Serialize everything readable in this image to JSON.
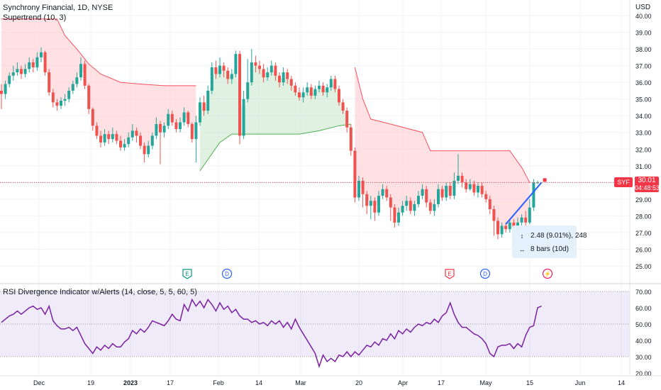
{
  "header": {
    "title": "Synchrony Financial, 1D, NYSE",
    "indicator": "Supertrend (10, 3)",
    "currency": "USD"
  },
  "rsi": {
    "label": "RSI Divergence Indicator w/Alerts (14, close, 5, 5, 60, 5)",
    "y_ticks": [
      "70.00",
      "60.00",
      "50.00",
      "40.00",
      "30.00",
      "20.00"
    ],
    "values": [
      51,
      53,
      55,
      56,
      58,
      56,
      58,
      60,
      61,
      59,
      60,
      56,
      61,
      52,
      49,
      47,
      47,
      48,
      46,
      48,
      43,
      38,
      35,
      32,
      36,
      34,
      37,
      35,
      38,
      36,
      36,
      39,
      41,
      46,
      44,
      47,
      45,
      48,
      52,
      51,
      50,
      49,
      52,
      56,
      53,
      52,
      62,
      58,
      65,
      61,
      64,
      60,
      65,
      62,
      58,
      63,
      59,
      61,
      57,
      59,
      55,
      53,
      53,
      51,
      52,
      50,
      51,
      49,
      52,
      50,
      52,
      48,
      51,
      47,
      53,
      48,
      44,
      40,
      36,
      32,
      24,
      31,
      27,
      29,
      27,
      31,
      30,
      33,
      30,
      33,
      31,
      34,
      37,
      36,
      39,
      37,
      41,
      40,
      44,
      41,
      46,
      44,
      47,
      45,
      48,
      50,
      49,
      51,
      50,
      53,
      51,
      55,
      57,
      63,
      56,
      51,
      48,
      48,
      46,
      44,
      43,
      41,
      38,
      32,
      30,
      36,
      37,
      37,
      38,
      35,
      38,
      36,
      43,
      48,
      49,
      60,
      61
    ]
  },
  "price": {
    "axis_ticks": [
      "40.00",
      "39.00",
      "38.00",
      "37.00",
      "36.00",
      "35.00",
      "34.00",
      "33.00",
      "32.00",
      "31.00",
      "30.00",
      "29.00",
      "28.00",
      "27.00",
      "26.00",
      "25.00"
    ],
    "last_symbol": "SYF",
    "last_price": "30.01",
    "countdown": "04:48:53"
  },
  "x_axis": {
    "labels": [
      "Dec",
      "19",
      "2023",
      "17",
      "Feb",
      "14",
      "Mar",
      "20",
      "Apr",
      "17",
      "May",
      "15",
      "Jun",
      "14"
    ]
  },
  "events": [
    {
      "label": "E",
      "kind": "earnings-green"
    },
    {
      "label": "D",
      "kind": "dividend"
    },
    {
      "label": "E",
      "kind": "earnings-red"
    },
    {
      "label": "D",
      "kind": "dividend"
    },
    {
      "label": "⚡",
      "kind": "flash"
    }
  ],
  "measure": {
    "range_text": "2.48 (9.01%), 248",
    "bars_text": "8 bars (10d)"
  },
  "chart_data": {
    "type": "candlestick",
    "title": "Synchrony Financial, 1D, NYSE",
    "ylim": [
      24.5,
      40.5
    ],
    "x_labels": [
      "Dec",
      "19",
      "2023",
      "17",
      "Feb",
      "14",
      "Mar",
      "20",
      "Apr",
      "17",
      "May",
      "15",
      "Jun",
      "14"
    ],
    "candles": [
      [
        35.5,
        35.3,
        35.9,
        34.4
      ],
      [
        35.3,
        35.9,
        36.1,
        35.0
      ],
      [
        35.9,
        36.4,
        36.6,
        35.7
      ],
      [
        36.4,
        36.6,
        37.0,
        36.1
      ],
      [
        36.6,
        36.8,
        37.2,
        36.4
      ],
      [
        36.8,
        36.5,
        37.0,
        36.2
      ],
      [
        36.5,
        36.8,
        37.1,
        36.3
      ],
      [
        36.8,
        37.2,
        37.5,
        36.6
      ],
      [
        37.2,
        36.9,
        37.4,
        36.6
      ],
      [
        36.9,
        37.5,
        37.8,
        36.7
      ],
      [
        37.5,
        37.8,
        38.1,
        37.2
      ],
      [
        37.8,
        36.6,
        37.9,
        36.4
      ],
      [
        36.6,
        35.4,
        36.8,
        35.2
      ],
      [
        35.4,
        34.8,
        35.6,
        34.5
      ],
      [
        34.8,
        34.6,
        35.0,
        34.3
      ],
      [
        34.6,
        34.9,
        35.1,
        34.4
      ],
      [
        34.9,
        35.0,
        35.3,
        34.6
      ],
      [
        35.0,
        35.5,
        35.7,
        34.8
      ],
      [
        35.5,
        35.9,
        36.1,
        35.3
      ],
      [
        35.9,
        36.3,
        36.6,
        35.7
      ],
      [
        36.3,
        37.1,
        37.5,
        36.1
      ],
      [
        37.1,
        35.8,
        37.3,
        35.6
      ],
      [
        35.8,
        34.4,
        35.9,
        34.1
      ],
      [
        34.4,
        33.4,
        34.5,
        33.1
      ],
      [
        33.4,
        32.8,
        33.6,
        32.6
      ],
      [
        32.8,
        32.4,
        33.1,
        32.1
      ],
      [
        32.4,
        32.9,
        33.2,
        32.2
      ],
      [
        32.9,
        32.6,
        33.1,
        32.3
      ],
      [
        32.6,
        32.9,
        33.3,
        32.4
      ],
      [
        32.9,
        32.5,
        33.1,
        32.3
      ],
      [
        32.5,
        32.1,
        32.8,
        31.9
      ],
      [
        32.1,
        32.3,
        32.6,
        31.9
      ],
      [
        32.3,
        32.7,
        33.0,
        32.1
      ],
      [
        32.7,
        33.1,
        33.5,
        32.5
      ],
      [
        33.1,
        32.8,
        33.3,
        32.4
      ],
      [
        32.8,
        32.2,
        33.0,
        32.0
      ],
      [
        32.2,
        31.7,
        32.4,
        31.2
      ],
      [
        31.7,
        32.2,
        32.5,
        31.5
      ],
      [
        32.2,
        32.8,
        33.0,
        32.0
      ],
      [
        32.8,
        33.5,
        33.9,
        32.6
      ],
      [
        33.5,
        33.0,
        33.7,
        31.1
      ],
      [
        33.0,
        33.4,
        33.6,
        32.7
      ],
      [
        33.4,
        34.1,
        34.4,
        33.2
      ],
      [
        34.1,
        33.6,
        34.3,
        33.4
      ],
      [
        33.6,
        33.2,
        33.8,
        33.0
      ],
      [
        33.2,
        33.6,
        33.9,
        33.0
      ],
      [
        33.6,
        34.2,
        34.5,
        33.4
      ],
      [
        34.2,
        33.5,
        34.3,
        33.3
      ],
      [
        33.5,
        32.6,
        33.6,
        32.4
      ],
      [
        32.6,
        33.6,
        34.0,
        31.2
      ],
      [
        33.6,
        34.8,
        35.1,
        33.4
      ],
      [
        34.8,
        34.3,
        35.2,
        34.0
      ],
      [
        34.3,
        35.5,
        35.8,
        34.1
      ],
      [
        35.5,
        36.9,
        37.2,
        35.3
      ],
      [
        36.9,
        36.5,
        37.3,
        36.2
      ],
      [
        36.5,
        37.0,
        37.5,
        36.3
      ],
      [
        37.0,
        36.7,
        37.2,
        36.3
      ],
      [
        36.7,
        36.2,
        36.9,
        35.9
      ],
      [
        36.2,
        36.5,
        36.8,
        35.9
      ],
      [
        36.5,
        37.7,
        37.9,
        36.3
      ],
      [
        37.7,
        32.8,
        37.9,
        32.3
      ],
      [
        32.8,
        35.0,
        35.5,
        32.6
      ],
      [
        35.0,
        36.0,
        37.4,
        34.8
      ],
      [
        36.0,
        37.2,
        38.0,
        35.8
      ],
      [
        37.2,
        37.0,
        37.6,
        36.6
      ],
      [
        37.0,
        36.8,
        37.3,
        36.5
      ],
      [
        36.8,
        36.3,
        37.1,
        36.0
      ],
      [
        36.3,
        36.6,
        36.9,
        36.1
      ],
      [
        36.6,
        37.0,
        37.3,
        36.4
      ],
      [
        37.0,
        36.4,
        37.2,
        36.1
      ],
      [
        36.4,
        36.0,
        36.6,
        35.7
      ],
      [
        36.0,
        36.6,
        36.9,
        35.8
      ],
      [
        36.6,
        36.2,
        36.8,
        35.9
      ],
      [
        36.2,
        35.8,
        36.4,
        35.5
      ],
      [
        35.8,
        35.4,
        36.0,
        35.2
      ],
      [
        35.4,
        35.1,
        35.7,
        34.9
      ],
      [
        35.1,
        35.4,
        35.7,
        34.8
      ],
      [
        35.4,
        35.7,
        36.0,
        35.2
      ],
      [
        35.7,
        35.2,
        35.9,
        35.0
      ],
      [
        35.2,
        35.6,
        35.8,
        35.0
      ],
      [
        35.6,
        35.8,
        36.1,
        35.4
      ],
      [
        35.8,
        35.4,
        36.0,
        35.2
      ],
      [
        35.4,
        35.7,
        35.9,
        35.1
      ],
      [
        35.7,
        36.2,
        36.4,
        35.5
      ],
      [
        36.2,
        35.6,
        36.4,
        35.4
      ],
      [
        35.6,
        34.8,
        35.8,
        34.6
      ],
      [
        34.8,
        34.3,
        35.0,
        34.1
      ],
      [
        34.3,
        33.3,
        34.5,
        33.0
      ],
      [
        33.3,
        31.9,
        33.5,
        31.6
      ],
      [
        31.9,
        29.1,
        32.1,
        28.8
      ],
      [
        29.1,
        30.1,
        30.4,
        28.9
      ],
      [
        30.1,
        29.3,
        30.3,
        28.5
      ],
      [
        29.3,
        28.6,
        29.5,
        28.1
      ],
      [
        28.6,
        28.9,
        29.2,
        27.8
      ],
      [
        28.9,
        28.2,
        29.1,
        27.7
      ],
      [
        28.2,
        29.2,
        29.5,
        28.0
      ],
      [
        29.2,
        29.6,
        29.9,
        29.0
      ],
      [
        29.6,
        29.1,
        29.8,
        28.9
      ],
      [
        29.1,
        28.5,
        29.3,
        27.7
      ],
      [
        28.5,
        27.6,
        28.7,
        27.3
      ],
      [
        27.6,
        28.2,
        28.5,
        27.4
      ],
      [
        28.2,
        28.6,
        28.9,
        28.0
      ],
      [
        28.6,
        28.9,
        29.2,
        28.3
      ],
      [
        28.9,
        28.3,
        29.1,
        28.1
      ],
      [
        28.3,
        28.7,
        28.9,
        28.0
      ],
      [
        28.7,
        29.2,
        29.5,
        28.5
      ],
      [
        29.2,
        29.6,
        29.9,
        29.0
      ],
      [
        29.6,
        28.8,
        29.8,
        28.5
      ],
      [
        28.8,
        28.3,
        29.0,
        28.1
      ],
      [
        28.3,
        28.7,
        29.0,
        28.0
      ],
      [
        28.7,
        29.6,
        29.9,
        28.5
      ],
      [
        29.6,
        29.1,
        29.8,
        28.9
      ],
      [
        29.1,
        29.8,
        30.0,
        28.9
      ],
      [
        29.8,
        29.2,
        30.0,
        29.0
      ],
      [
        29.2,
        30.1,
        30.6,
        29.0
      ],
      [
        30.1,
        30.4,
        31.7,
        29.9
      ],
      [
        30.4,
        30.0,
        30.6,
        29.7
      ],
      [
        30.0,
        29.6,
        30.2,
        29.4
      ],
      [
        29.6,
        29.9,
        30.2,
        29.5
      ],
      [
        29.9,
        29.4,
        30.1,
        29.2
      ],
      [
        29.4,
        29.8,
        30.0,
        29.1
      ],
      [
        29.8,
        29.3,
        30.0,
        29.1
      ],
      [
        29.3,
        29.0,
        29.5,
        28.8
      ],
      [
        29.0,
        28.4,
        29.2,
        28.1
      ],
      [
        28.4,
        27.7,
        28.6,
        26.8
      ],
      [
        27.7,
        26.9,
        27.9,
        26.6
      ],
      [
        26.9,
        27.4,
        27.6,
        26.7
      ],
      [
        27.4,
        27.2,
        27.6,
        27.0
      ],
      [
        27.2,
        27.6,
        27.8,
        27.0
      ],
      [
        27.6,
        27.3,
        27.8,
        27.1
      ],
      [
        27.3,
        27.6,
        27.9,
        27.1
      ],
      [
        27.6,
        27.9,
        28.1,
        27.4
      ],
      [
        27.9,
        27.6,
        28.3,
        27.4
      ],
      [
        27.6,
        28.5,
        29.0,
        27.5
      ],
      [
        28.5,
        30.0,
        30.2,
        28.3
      ],
      [
        30.0,
        30.0,
        30.1,
        29.9
      ]
    ],
    "supertrend": [
      [
        0,
        39.8
      ],
      [
        5,
        39.8
      ],
      [
        10,
        39.8
      ],
      [
        14,
        39.8
      ],
      [
        16,
        38.8
      ],
      [
        19,
        38.0
      ],
      [
        22,
        37.1
      ],
      [
        25,
        36.5
      ],
      [
        30,
        36.0
      ],
      [
        35,
        35.9
      ],
      [
        41,
        35.8
      ],
      [
        49,
        35.8
      ],
      [
        50,
        null
      ],
      [
        50,
        30.7
      ],
      [
        55,
        32.4
      ],
      [
        58,
        32.9
      ],
      [
        64,
        32.9
      ],
      [
        75,
        32.9
      ],
      [
        80,
        33.1
      ],
      [
        85,
        33.4
      ],
      [
        88,
        33.5
      ],
      [
        89,
        null
      ],
      [
        89,
        36.9
      ],
      [
        91,
        35.0
      ],
      [
        93,
        33.8
      ],
      [
        98,
        33.5
      ],
      [
        106,
        33.0
      ],
      [
        108,
        31.9
      ],
      [
        112,
        31.9
      ],
      [
        120,
        31.9
      ],
      [
        128,
        31.9
      ],
      [
        131,
        30.9
      ],
      [
        133,
        30.0
      ]
    ],
    "rsi_band": [
      30,
      70
    ],
    "rsi_mid": 50,
    "measure_line": {
      "from": [
        127,
        27.5
      ],
      "to": [
        136,
        30.0
      ]
    }
  }
}
